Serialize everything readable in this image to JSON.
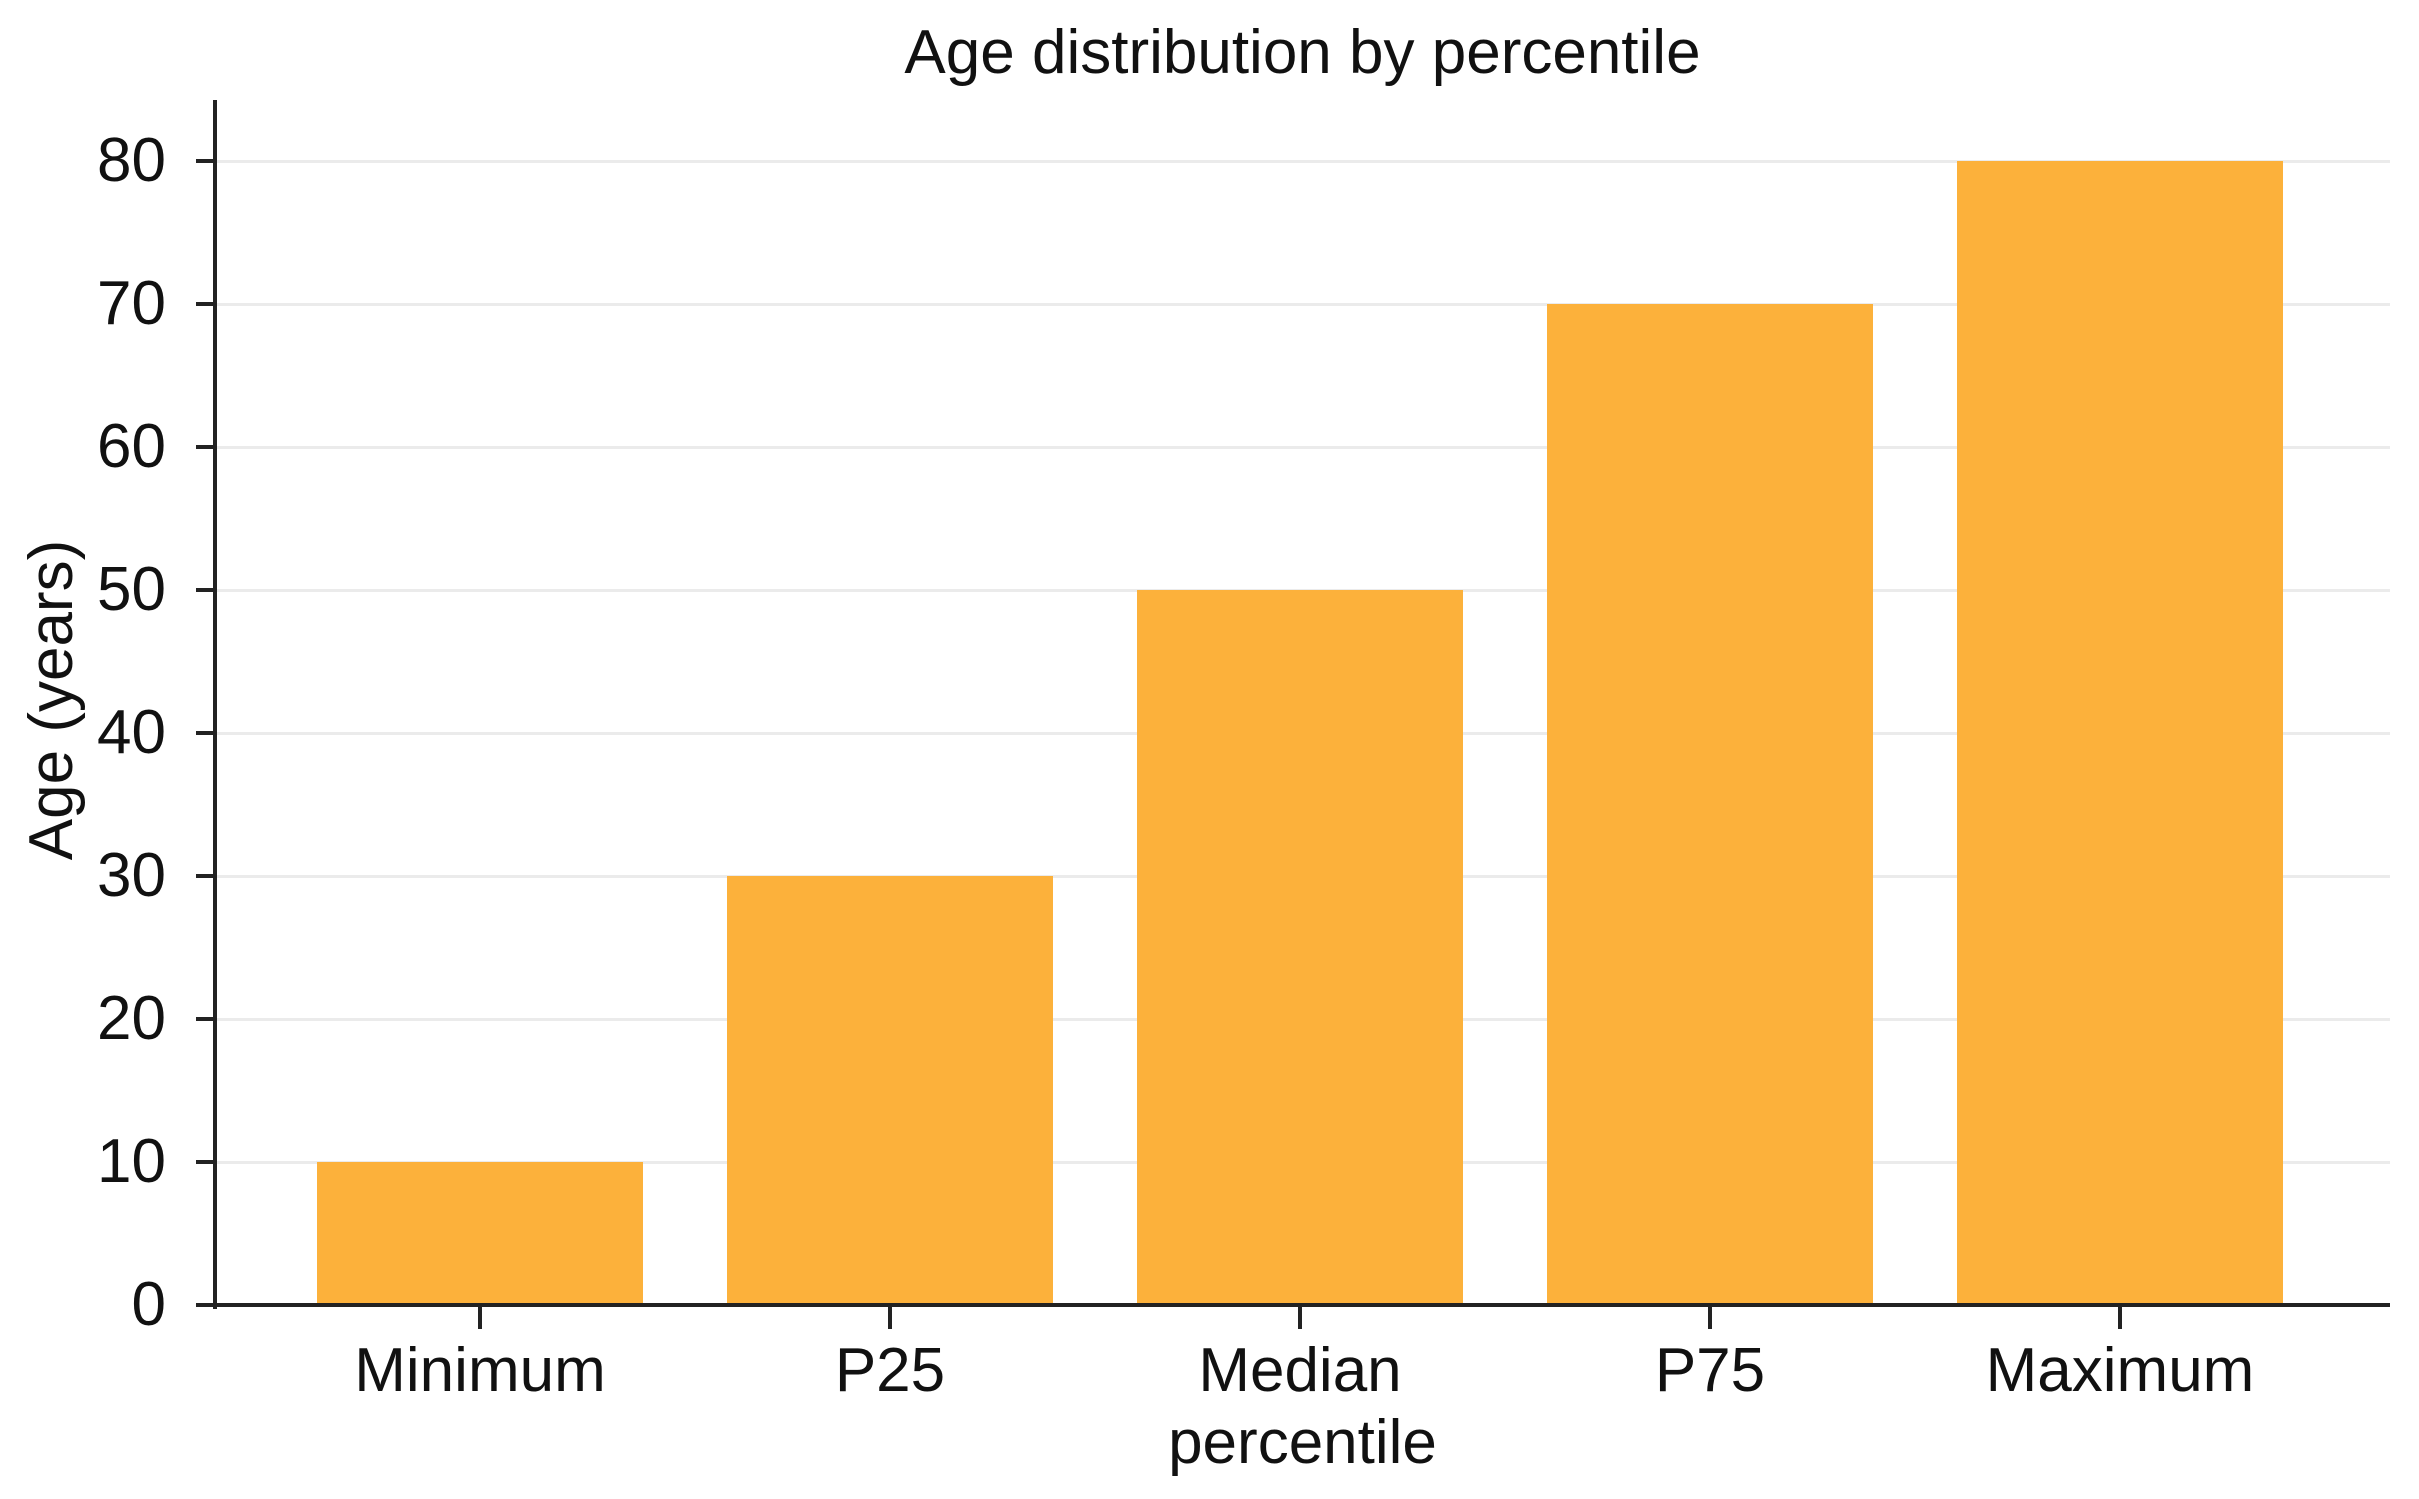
{
  "chart_data": {
    "type": "bar",
    "title": "Age distribution by percentile",
    "xlabel": "percentile",
    "ylabel": "Age (years)",
    "categories": [
      "Minimum",
      "P25",
      "Median",
      "P75",
      "Maximum"
    ],
    "values": [
      10,
      30,
      50,
      70,
      80
    ],
    "yticks": [
      0,
      10,
      20,
      30,
      40,
      50,
      60,
      70,
      80
    ],
    "ylim": [
      0,
      80
    ],
    "grid": "horizontal-light",
    "legend": "none",
    "bar_color": "#FCB13B",
    "axis_color": "#222222",
    "grid_color": "#EBEBEB",
    "text_color": "#111111",
    "background_color": "#FFFFFF"
  }
}
